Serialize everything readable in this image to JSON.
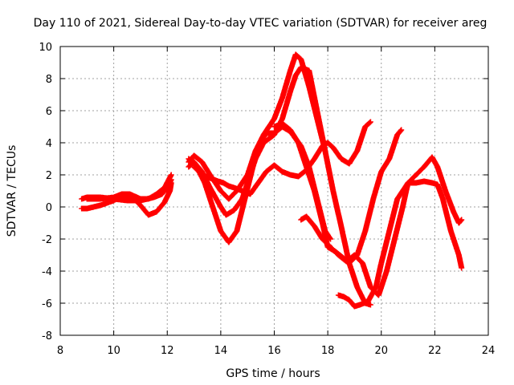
{
  "chart_data": {
    "type": "scatter",
    "title": "Day 110 of 2021, Sidereal Day-to-day VTEC variation (SDTVAR) for receiver areg",
    "xlabel": "GPS time / hours",
    "ylabel": "SDTVAR / TECUs",
    "xlim": [
      8,
      24
    ],
    "ylim": [
      -8,
      10
    ],
    "xticks": [
      "8",
      "10",
      "12",
      "14",
      "16",
      "18",
      "20",
      "22",
      "24"
    ],
    "yticks": [
      "-8",
      "-6",
      "-4",
      "-2",
      "0",
      "2",
      "4",
      "6",
      "8",
      "10"
    ],
    "grid": true,
    "marker": "+",
    "series_color": "#ff0000",
    "series": [
      {
        "x": [
          8.8,
          9.0,
          9.5,
          10.0,
          10.5,
          11.0,
          11.5,
          11.8,
          12.0,
          12.15
        ],
        "y": [
          0.5,
          0.6,
          0.6,
          0.5,
          0.4,
          0.4,
          0.6,
          0.8,
          1.2,
          1.7
        ]
      },
      {
        "x": [
          8.8,
          9.0,
          9.5,
          10.0,
          10.3,
          10.7,
          11.0,
          11.3,
          11.6,
          11.9,
          12.1,
          12.15
        ],
        "y": [
          -0.1,
          -0.1,
          0.1,
          0.4,
          0.7,
          0.6,
          0.1,
          -0.5,
          -0.3,
          0.3,
          1.0,
          1.5
        ]
      },
      {
        "x": [
          9.0,
          9.5,
          10.0,
          10.3,
          10.6,
          11.0,
          11.3,
          11.6,
          11.9,
          12.15
        ],
        "y": [
          0.5,
          0.5,
          0.6,
          0.8,
          0.8,
          0.5,
          0.5,
          0.8,
          1.2,
          2.0
        ]
      },
      {
        "x": [
          12.8,
          13.0,
          13.3,
          13.6,
          14.0,
          14.3,
          14.6,
          15.0,
          15.3,
          15.6,
          16.0,
          16.3,
          16.6,
          16.8,
          17.0,
          17.3,
          17.6,
          17.9
        ],
        "y": [
          2.8,
          3.2,
          2.8,
          2.0,
          1.0,
          0.5,
          1.0,
          2.0,
          3.5,
          4.5,
          5.5,
          6.8,
          8.5,
          9.5,
          9.2,
          7.5,
          5.5,
          3.5
        ]
      },
      {
        "x": [
          12.8,
          13.0,
          13.3,
          13.6,
          14.0,
          14.2,
          14.5,
          14.8,
          15.0,
          15.3,
          15.6,
          16.0,
          16.3,
          16.6,
          16.8,
          17.0,
          17.3,
          17.6,
          17.9,
          18.2,
          18.5,
          18.8,
          19.1,
          19.4,
          19.6
        ],
        "y": [
          2.5,
          2.8,
          2.2,
          1.2,
          0.0,
          -0.5,
          -0.2,
          0.5,
          1.5,
          3.0,
          4.0,
          4.5,
          5.5,
          7.2,
          8.2,
          8.7,
          8.5,
          6.0,
          3.5,
          1.0,
          -1.2,
          -3.5,
          -5.0,
          -6.0,
          -6.1
        ]
      },
      {
        "x": [
          12.8,
          13.1,
          13.4,
          13.7,
          14.0,
          14.3,
          14.6,
          14.9,
          15.2,
          15.4,
          15.7,
          16.0,
          16.3,
          16.6,
          17.0,
          17.3,
          17.6,
          17.9,
          18.1
        ],
        "y": [
          3.0,
          2.5,
          1.5,
          0.0,
          -1.5,
          -2.2,
          -1.5,
          0.5,
          2.5,
          3.8,
          4.6,
          4.6,
          5.0,
          4.7,
          3.8,
          2.5,
          0.5,
          -1.5,
          -2.0
        ]
      },
      {
        "x": [
          13.0,
          13.3,
          13.6,
          13.9,
          14.1,
          14.3,
          14.5,
          14.8,
          15.1,
          15.4,
          15.7,
          16.0,
          16.3,
          16.6
        ],
        "y": [
          2.5,
          2.0,
          1.8,
          1.6,
          1.5,
          1.3,
          1.2,
          1.0,
          0.8,
          1.5,
          2.2,
          2.6,
          2.2,
          2.0
        ]
      },
      {
        "x": [
          16.6,
          16.9,
          17.2,
          17.5,
          17.8,
          18.0,
          18.2,
          18.5,
          18.8,
          19.1,
          19.4,
          19.6
        ],
        "y": [
          2.0,
          1.9,
          2.3,
          3.0,
          3.8,
          4.0,
          3.7,
          3.0,
          2.7,
          3.5,
          5.0,
          5.3
        ]
      },
      {
        "x": [
          16.0,
          16.3,
          16.6,
          16.9,
          17.2,
          17.5,
          17.8,
          18.0,
          18.3,
          18.6,
          18.8,
          19.1,
          19.4,
          19.7,
          20.0,
          20.3,
          20.6,
          20.75
        ],
        "y": [
          5.0,
          5.2,
          4.8,
          4.0,
          2.5,
          1.0,
          -1.0,
          -2.5,
          -2.8,
          -3.2,
          -3.5,
          -3.0,
          -1.5,
          0.5,
          2.2,
          3.0,
          4.5,
          4.8
        ]
      },
      {
        "x": [
          18.4,
          18.6,
          18.8,
          19.0,
          19.2,
          19.5,
          19.8,
          20.0,
          20.3,
          20.6,
          21.0,
          21.3,
          21.6,
          21.9,
          22.1,
          22.3,
          22.6,
          22.9,
          23.0
        ],
        "y": [
          -5.5,
          -5.6,
          -5.8,
          -6.2,
          -6.1,
          -5.9,
          -5.0,
          -3.5,
          -1.5,
          0.5,
          1.5,
          1.5,
          1.6,
          1.5,
          1.4,
          0.5,
          -1.5,
          -3.0,
          -3.8
        ]
      },
      {
        "x": [
          17.0,
          17.2,
          17.5,
          17.8,
          18.1,
          18.4,
          18.7,
          19.0,
          19.3,
          19.6,
          19.9,
          20.2,
          20.5,
          20.8,
          21.0,
          21.3,
          21.6,
          21.9,
          22.1,
          22.4,
          22.7,
          22.9,
          23.0
        ],
        "y": [
          -0.8,
          -0.6,
          -1.2,
          -2.0,
          -2.5,
          -3.0,
          -3.4,
          -3.0,
          -3.5,
          -5.0,
          -5.5,
          -4.0,
          -2.0,
          0.0,
          1.5,
          2.0,
          2.5,
          3.1,
          2.5,
          1.0,
          -0.3,
          -1.0,
          -0.8
        ]
      }
    ]
  }
}
